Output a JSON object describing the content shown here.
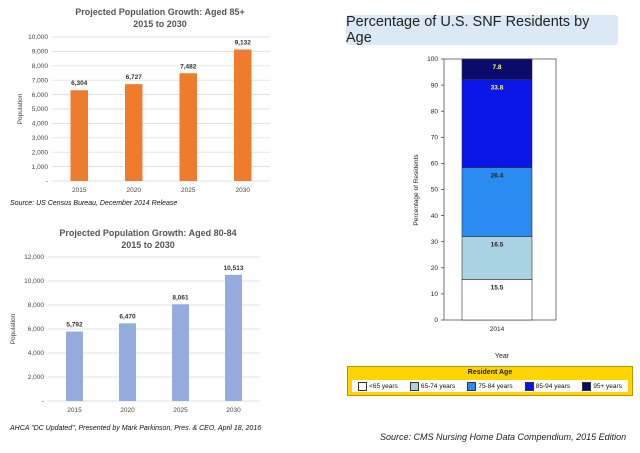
{
  "chart_data": [
    {
      "type": "bar",
      "title": "Projected Population Growth:  Aged 85+",
      "subtitle": "2015 to 2030",
      "ylabel": "Population",
      "categories": [
        "2015",
        "2020",
        "2025",
        "2030"
      ],
      "values": [
        6304,
        6727,
        7482,
        9132
      ],
      "value_labels": [
        "6,304",
        "6,727",
        "7,482",
        "9,132"
      ],
      "ylim": [
        0,
        10000
      ],
      "y_ticks": [
        "-",
        "1,000",
        "2,000",
        "3,000",
        "4,000",
        "5,000",
        "6,000",
        "7,000",
        "8,000",
        "9,000",
        "10,000"
      ],
      "color": "#ef7b2d",
      "grid": true,
      "source": "Source: US Census Bureau, December 2014 Release"
    },
    {
      "type": "bar",
      "title": "Projected Population Growth:  Aged 80-84",
      "subtitle": "2015 to 2030",
      "ylabel": "Population",
      "categories": [
        "2015",
        "2020",
        "2025",
        "2030"
      ],
      "values": [
        5792,
        6470,
        8061,
        10513
      ],
      "value_labels": [
        "5,792",
        "6,470",
        "8,061",
        "10,513"
      ],
      "ylim": [
        0,
        12000
      ],
      "y_ticks": [
        "-",
        "2,000",
        "4,000",
        "6,000",
        "8,000",
        "10,000",
        "12,000"
      ],
      "color": "#93acdd",
      "grid": true,
      "source": "AHCA \"DC Updated\", Presented by Mark Parkinson, Pres. & CEO, April 18, 2016"
    },
    {
      "type": "bar",
      "stacked": true,
      "title": "Percentage of U.S. SNF Residents by Age",
      "xlabel": "Year",
      "ylabel": "Percentage of Residents",
      "categories": [
        "2014"
      ],
      "ylim": [
        0,
        100
      ],
      "y_ticks": [
        "0",
        "10",
        "20",
        "30",
        "40",
        "50",
        "60",
        "70",
        "80",
        "90",
        "100"
      ],
      "legend_title": "Resident Age",
      "legend_position": "bottom",
      "series": [
        {
          "name": "<65 years",
          "values": [
            15.5
          ],
          "label": "15.5",
          "color": "#ffffff",
          "label_color": "#222222"
        },
        {
          "name": "65-74 years",
          "values": [
            16.5
          ],
          "label": "16.5",
          "color": "#a9d3e2",
          "label_color": "#222222"
        },
        {
          "name": "75-84 years",
          "values": [
            26.4
          ],
          "label": "26.4",
          "color": "#2a8cf2",
          "label_color": "#222222"
        },
        {
          "name": "85-94 years",
          "values": [
            33.8
          ],
          "label": "33.8",
          "color": "#0a16e8",
          "label_color": "#ffff66"
        },
        {
          "name": "95+ years",
          "values": [
            7.8
          ],
          "label": "7.8",
          "color": "#0b0b6e",
          "label_color": "#ffff66"
        }
      ],
      "source": "Source: CMS Nursing Home Data Compendium, 2015 Edition"
    }
  ]
}
